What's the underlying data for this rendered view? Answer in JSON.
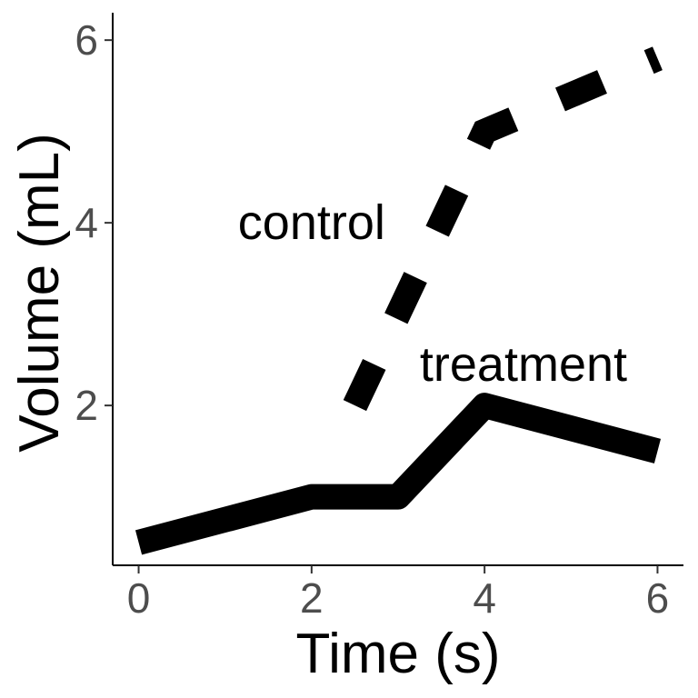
{
  "chart_data": {
    "type": "line",
    "title": "",
    "xlabel": "Time (s)",
    "ylabel": "Volume (mL)",
    "xlim": [
      -0.3,
      6.3
    ],
    "ylim": [
      0.25,
      6.3
    ],
    "x_ticks": [
      0,
      2,
      4,
      6
    ],
    "y_ticks": [
      2,
      4,
      6
    ],
    "x_tick_labels": [
      "0",
      "2",
      "4",
      "6"
    ],
    "y_tick_labels": [
      "2",
      "4",
      "6"
    ],
    "grid": false,
    "legend": "none",
    "series": [
      {
        "name": "control",
        "style": "dashed",
        "color": "#000000",
        "x": [
          2.5,
          3,
          4,
          6
        ],
        "y": [
          2.0,
          3.0,
          5.0,
          5.8
        ]
      },
      {
        "name": "treatment",
        "style": "solid",
        "color": "#000000",
        "x": [
          0,
          2,
          3,
          4,
          6
        ],
        "y": [
          0.5,
          1.0,
          1.0,
          2.0,
          1.5
        ]
      }
    ],
    "annotations": [
      {
        "text": "control",
        "x": 2.0,
        "y": 4.0
      },
      {
        "text": "treatment",
        "x": 4.45,
        "y": 2.45
      }
    ]
  }
}
